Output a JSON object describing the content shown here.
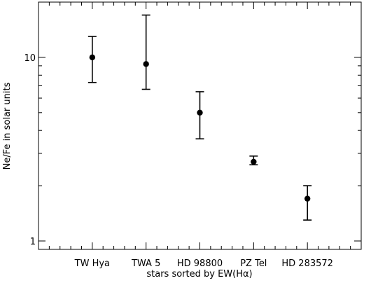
{
  "chart_data": {
    "type": "scatter",
    "title": "",
    "xlabel": "stars sorted by EW(Hα)",
    "ylabel": "Ne/Fe in solar units",
    "yscale": "log",
    "ylim": [
      0.9,
      20
    ],
    "xlim": [
      0,
      6
    ],
    "grid": false,
    "categories": [
      "TW Hya",
      "TWA 5",
      "HD 98800",
      "PZ Tel",
      "HD 283572"
    ],
    "series": [
      {
        "values": [
          10.0,
          9.2,
          5.0,
          2.7,
          1.7
        ],
        "err_low": [
          7.3,
          6.7,
          3.6,
          2.6,
          1.3
        ],
        "err_high": [
          13.0,
          17.0,
          6.5,
          2.9,
          2.0
        ]
      }
    ],
    "y_tick_labels": [
      {
        "value": 1,
        "label": "1"
      },
      {
        "value": 10,
        "label": "10"
      }
    ],
    "marker_color": "#000000"
  }
}
